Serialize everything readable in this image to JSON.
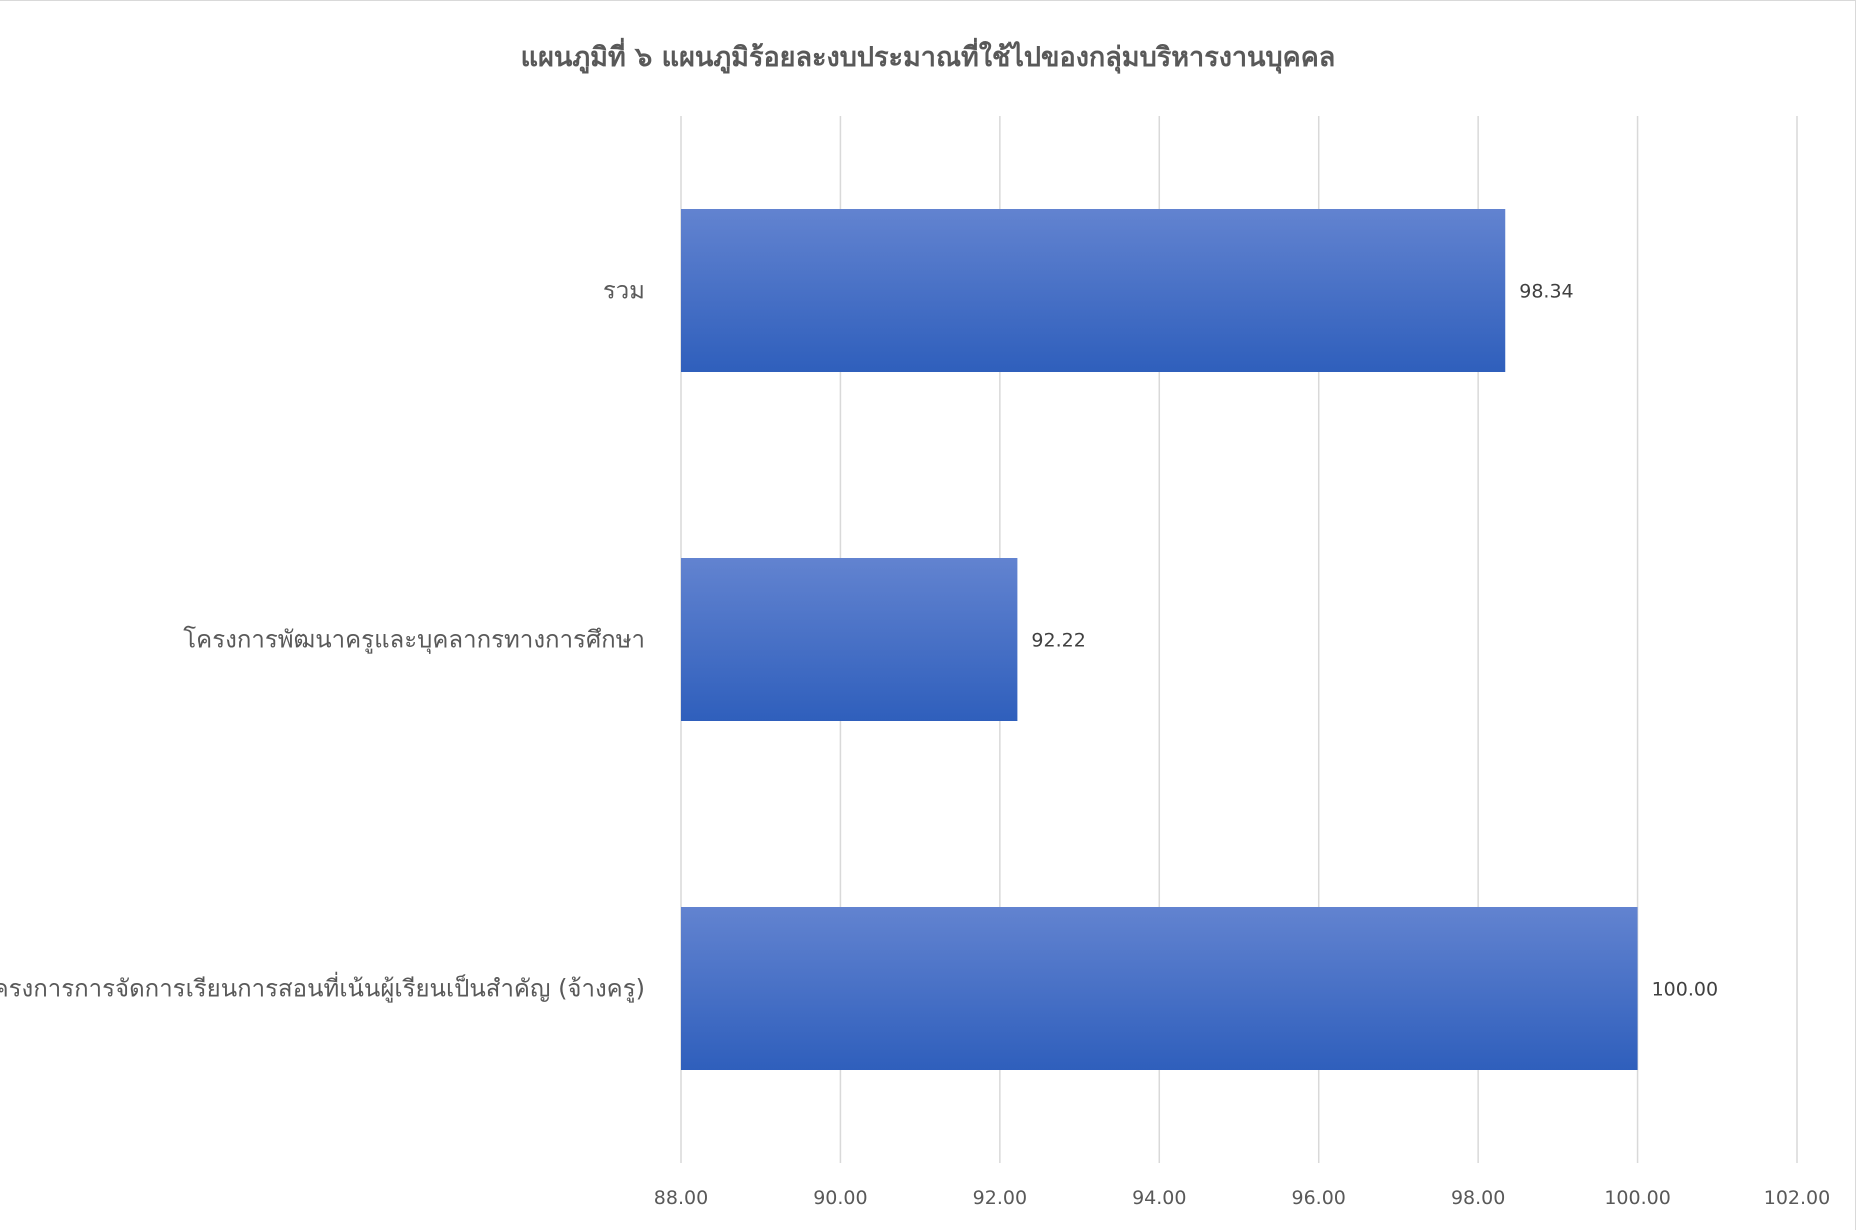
{
  "chart_data": {
    "type": "bar",
    "orientation": "horizontal",
    "title": "แผนภูมิที่ ๖ แผนภูมิร้อยละงบประมาณที่ใช้ไปของกลุ่มบริหารงานบุคคล",
    "categories": [
      "รวม",
      "โครงการพัฒนาครูและบุคลากรทางการศึกษา",
      "โครงการการจัดการเรียนการสอนที่เน้นผู้เรียนเป็นสำคัญ (จ้างครู)"
    ],
    "values": [
      98.34,
      92.22,
      100.0
    ],
    "data_labels": [
      "98.34",
      "92.22",
      "100.00"
    ],
    "x_ticks": [
      "88.00",
      "90.00",
      "92.00",
      "94.00",
      "96.00",
      "98.00",
      "100.00",
      "102.00"
    ],
    "xlim": [
      88,
      102
    ],
    "xlabel": "",
    "ylabel": "",
    "grid": "vertical",
    "legend": "none",
    "colors": {
      "bar_top": "#6283d0",
      "bar_bottom": "#2f5fbc",
      "grid": "#d9d9d9"
    }
  }
}
